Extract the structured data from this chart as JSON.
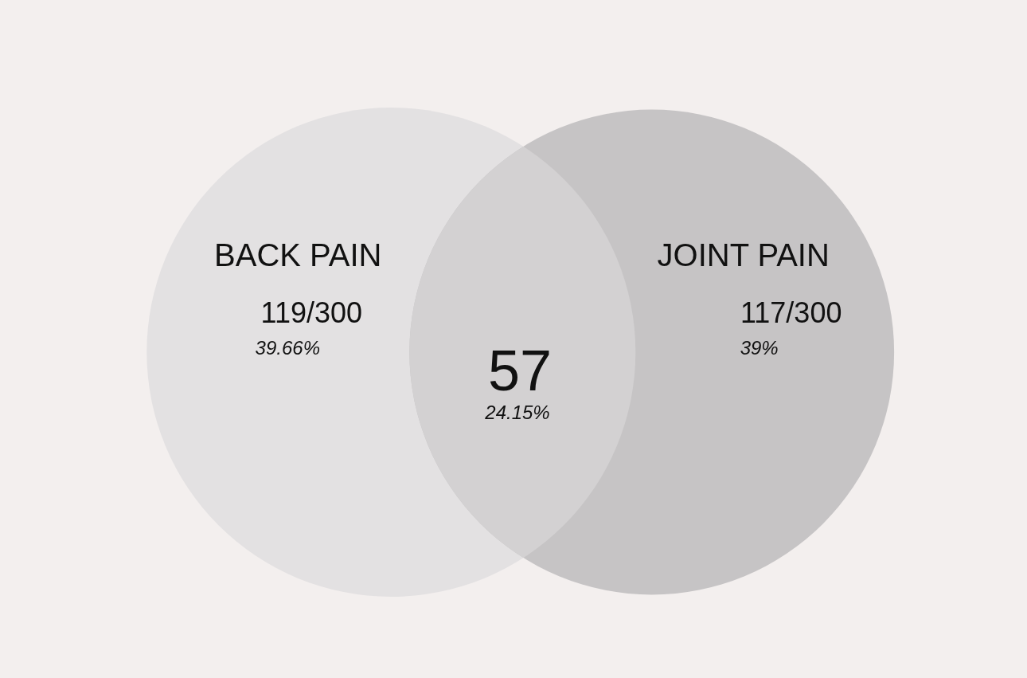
{
  "chart_data": {
    "type": "other",
    "categories": [
      "BACK PAIN",
      "JOINT PAIN"
    ],
    "values": [
      119,
      117
    ],
    "value_labels": [
      "119/300",
      "117/300"
    ],
    "colors": [
      "#e3e1e2",
      "#c6c4c5"
    ],
    "annotations": [
      "39.66%",
      "39%",
      "57",
      "24.15%"
    ]
  }
}
